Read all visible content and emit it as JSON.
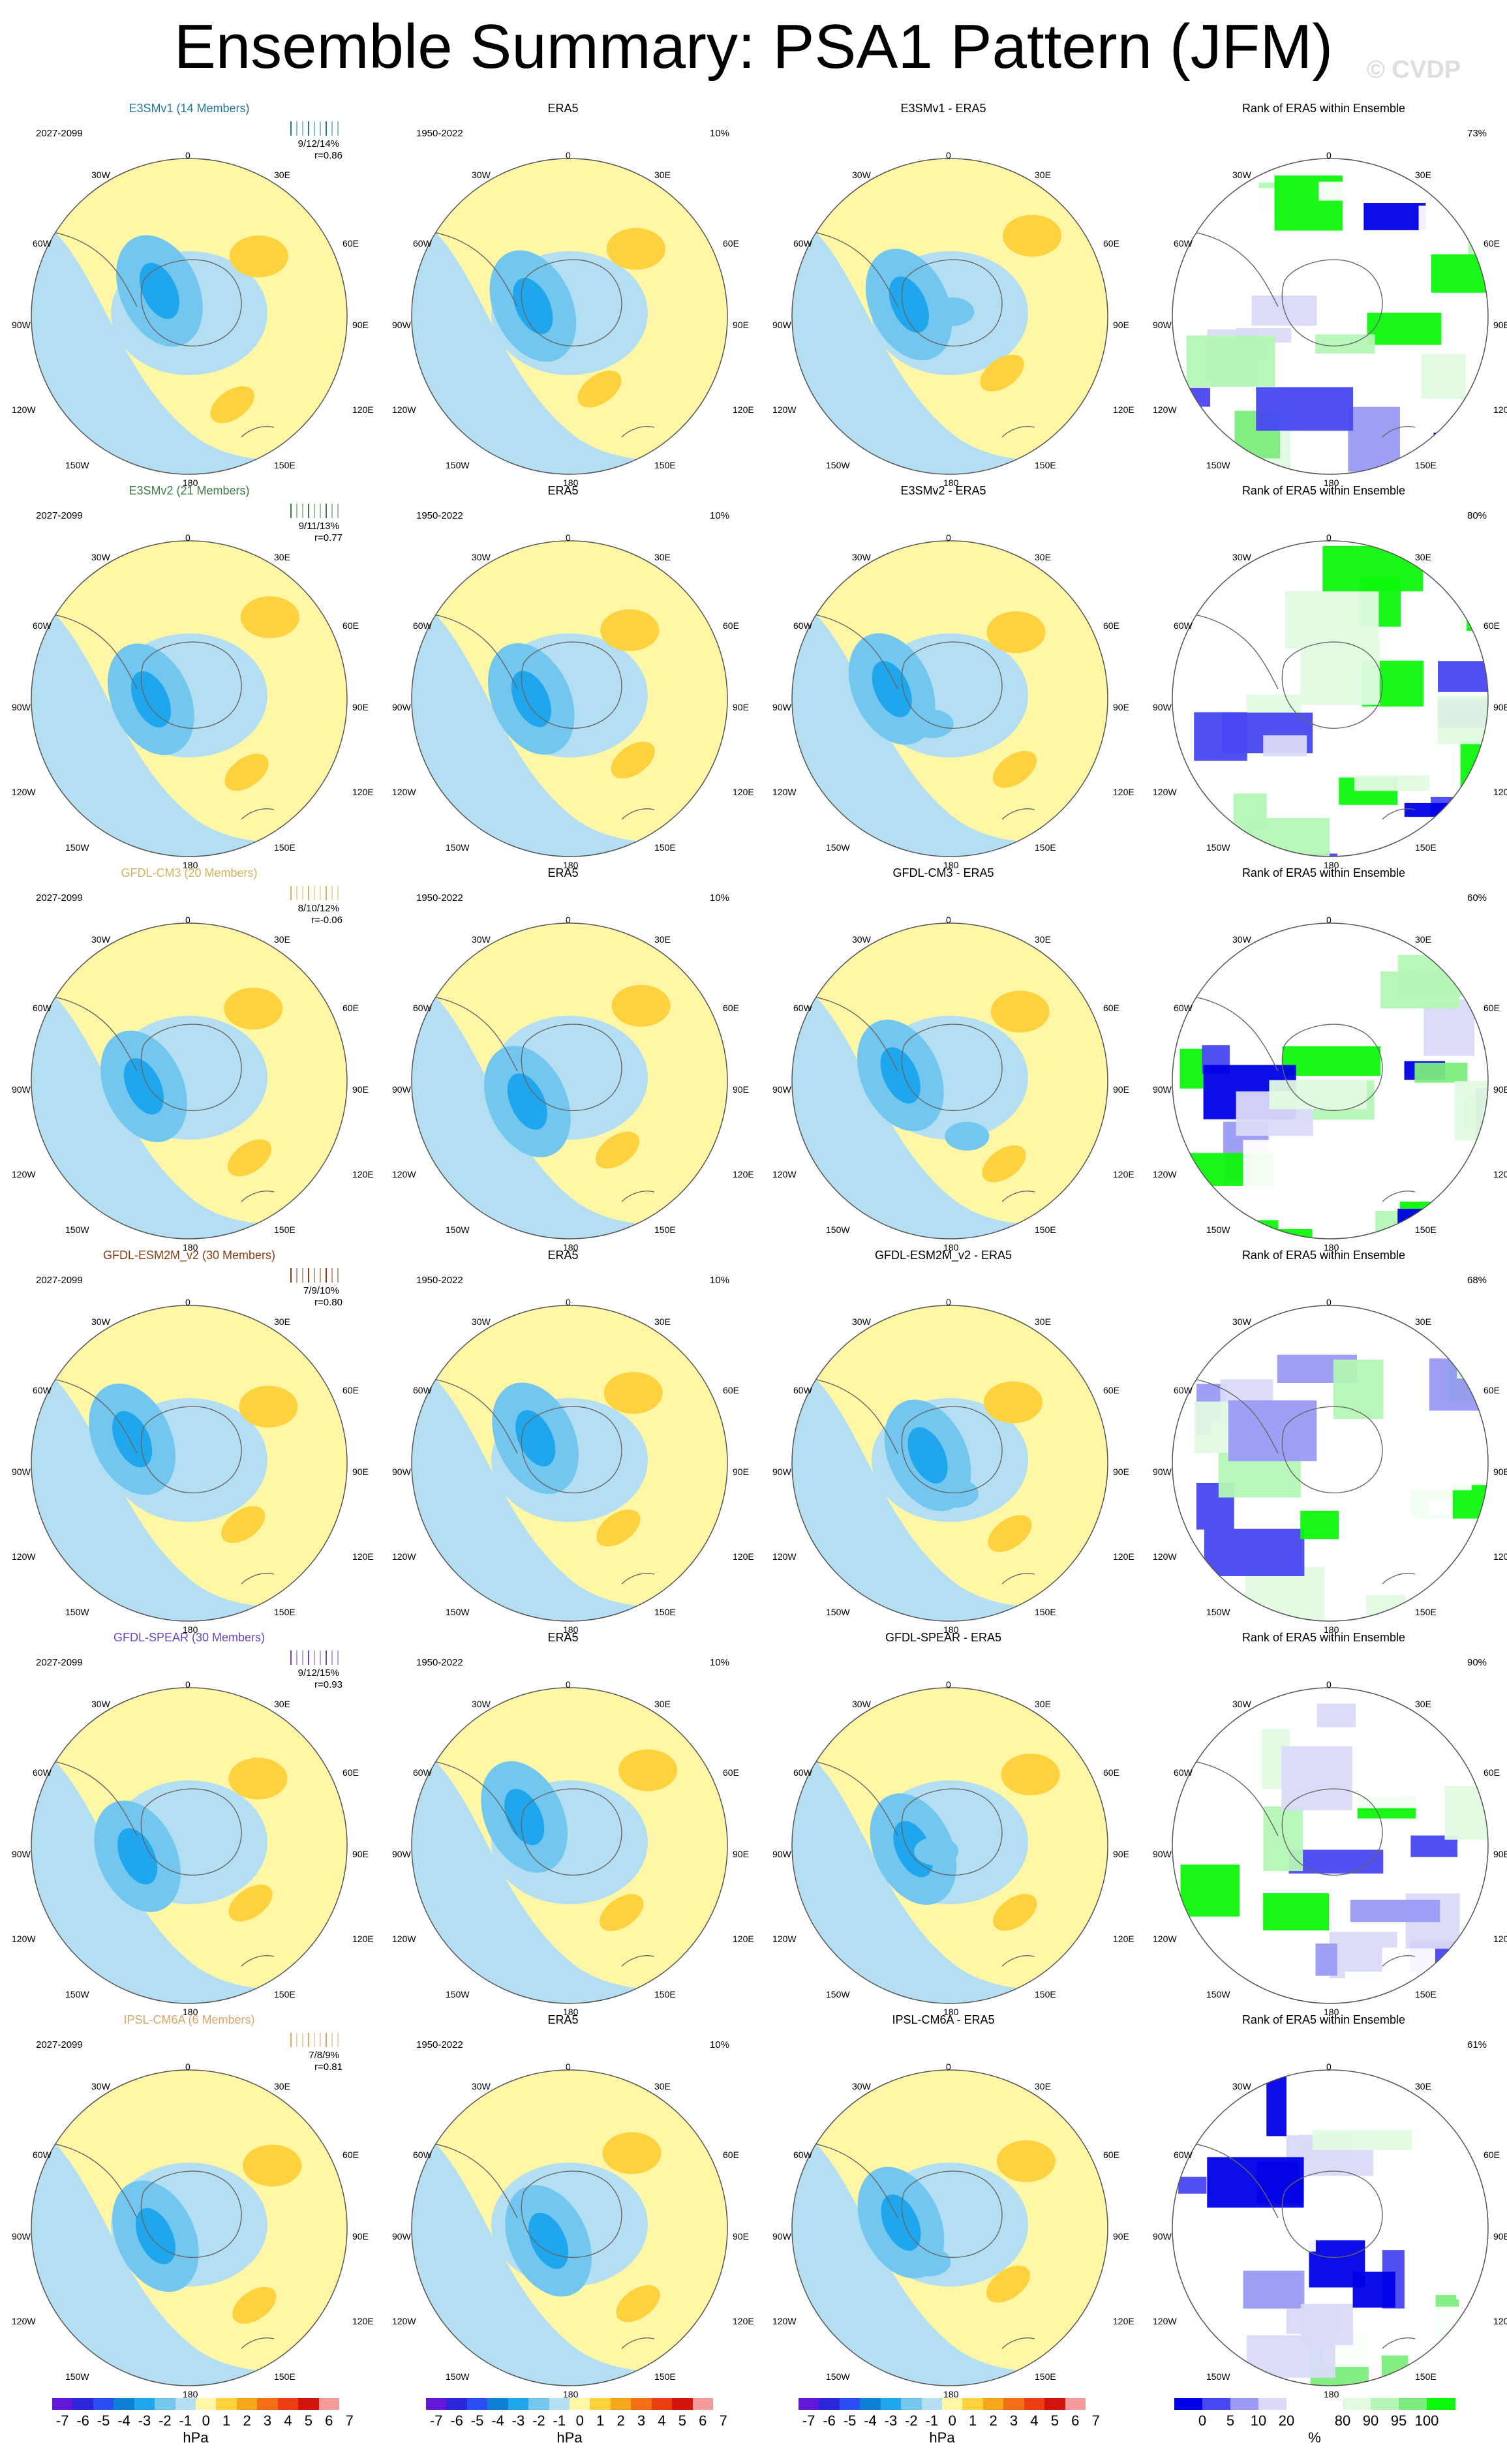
{
  "figure": {
    "title": "Ensemble Summary: PSA1 Pattern (JFM)",
    "watermark": "© CVDP"
  },
  "map_labels": {
    "top": "0",
    "bottom": "180",
    "upper_left": "30W",
    "upper_right": "30E",
    "mid_upper_left": "60W",
    "mid_upper_right": "60E",
    "left": "90W",
    "right": "90E",
    "mid_lower_left": "120W",
    "mid_lower_right": "120E",
    "lower_left": "150W",
    "lower_right": "150E"
  },
  "colors": {
    "ocean_positive": "#fff7a6",
    "ocean_negative": "#b4dff2",
    "neg_levels": [
      "#b4dff2",
      "#73c7ef",
      "#1fa6ec",
      "#0d7fd7",
      "#2a4ff0",
      "#2b26d8",
      "#6218d4"
    ],
    "pos_levels": [
      "#fff7a6",
      "#fed23f",
      "#f7a51c",
      "#f36f14",
      "#ea3f12",
      "#d2140f",
      "#f59b9b"
    ],
    "rank_levels": [
      "#0000e6",
      "#4848f2",
      "#9a9af5",
      "#dadaf8",
      "#ffffff",
      "#ffffff",
      "#e2fae2",
      "#b5f5b5",
      "#7ced7c",
      "#0ef80e"
    ]
  },
  "chart_data": [
    {
      "type": "heatmap",
      "row": 1,
      "model": "E3SMv1 (14 Members)",
      "model_color": "#227799",
      "model_period": "2027-2099",
      "stats": "9/12/14%",
      "correlation": "r=0.86",
      "obs": "ERA5",
      "obs_period": "1950-2022",
      "obs_percent": "10%",
      "difference_title": "E3SMv1 - ERA5",
      "rank_title": "Rank of ERA5 within Ensemble",
      "rank_percent": "73%"
    },
    {
      "type": "heatmap",
      "row": 2,
      "model": "E3SMv2 (21 Members)",
      "model_color": "#3d7a44",
      "model_period": "2027-2099",
      "stats": "9/11/13%",
      "correlation": "r=0.77",
      "obs": "ERA5",
      "obs_period": "1950-2022",
      "obs_percent": "10%",
      "difference_title": "E3SMv2 - ERA5",
      "rank_title": "Rank of ERA5 within Ensemble",
      "rank_percent": "80%"
    },
    {
      "type": "heatmap",
      "row": 3,
      "model": "GFDL-CM3 (20 Members)",
      "model_color": "#d4b35a",
      "model_period": "2027-2099",
      "stats": "8/10/12%",
      "correlation": "r=-0.06",
      "obs": "ERA5",
      "obs_period": "1950-2022",
      "obs_percent": "10%",
      "difference_title": "GFDL-CM3 - ERA5",
      "rank_title": "Rank of ERA5 within Ensemble",
      "rank_percent": "60%"
    },
    {
      "type": "heatmap",
      "row": 4,
      "model": "GFDL-ESM2M_v2 (30 Members)",
      "model_color": "#8a3a10",
      "model_period": "2027-2099",
      "stats": "7/9/10%",
      "correlation": "r=0.80",
      "obs": "ERA5",
      "obs_period": "1950-2022",
      "obs_percent": "10%",
      "difference_title": "GFDL-ESM2M_v2 - ERA5",
      "rank_title": "Rank of ERA5 within Ensemble",
      "rank_percent": "68%"
    },
    {
      "type": "heatmap",
      "row": 5,
      "model": "GFDL-SPEAR (30 Members)",
      "model_color": "#6a44bb",
      "model_period": "2027-2099",
      "stats": "9/12/15%",
      "correlation": "r=0.93",
      "obs": "ERA5",
      "obs_period": "1950-2022",
      "obs_percent": "10%",
      "difference_title": "GFDL-SPEAR - ERA5",
      "rank_title": "Rank of ERA5 within Ensemble",
      "rank_percent": "90%"
    },
    {
      "type": "heatmap",
      "row": 6,
      "model": "IPSL-CM6A (6 Members)",
      "model_color": "#d9a56a",
      "model_period": "2027-2099",
      "stats": "7/8/9%",
      "correlation": "r=0.81",
      "obs": "ERA5",
      "obs_period": "1950-2022",
      "obs_percent": "10%",
      "difference_title": "IPSL-CM6A - ERA5",
      "rank_title": "Rank of ERA5 within Ensemble",
      "rank_percent": "61%"
    }
  ],
  "colorbars": {
    "hpa_ticks": [
      "-7",
      "-6",
      "-5",
      "-4",
      "-3",
      "-2",
      "-1",
      "0",
      "1",
      "2",
      "3",
      "4",
      "5",
      "6",
      "7"
    ],
    "hpa_unit": "hPa",
    "rank_ticks": [
      "0",
      "5",
      "10",
      "20",
      "80",
      "90",
      "95",
      "100"
    ],
    "rank_unit": "%"
  }
}
